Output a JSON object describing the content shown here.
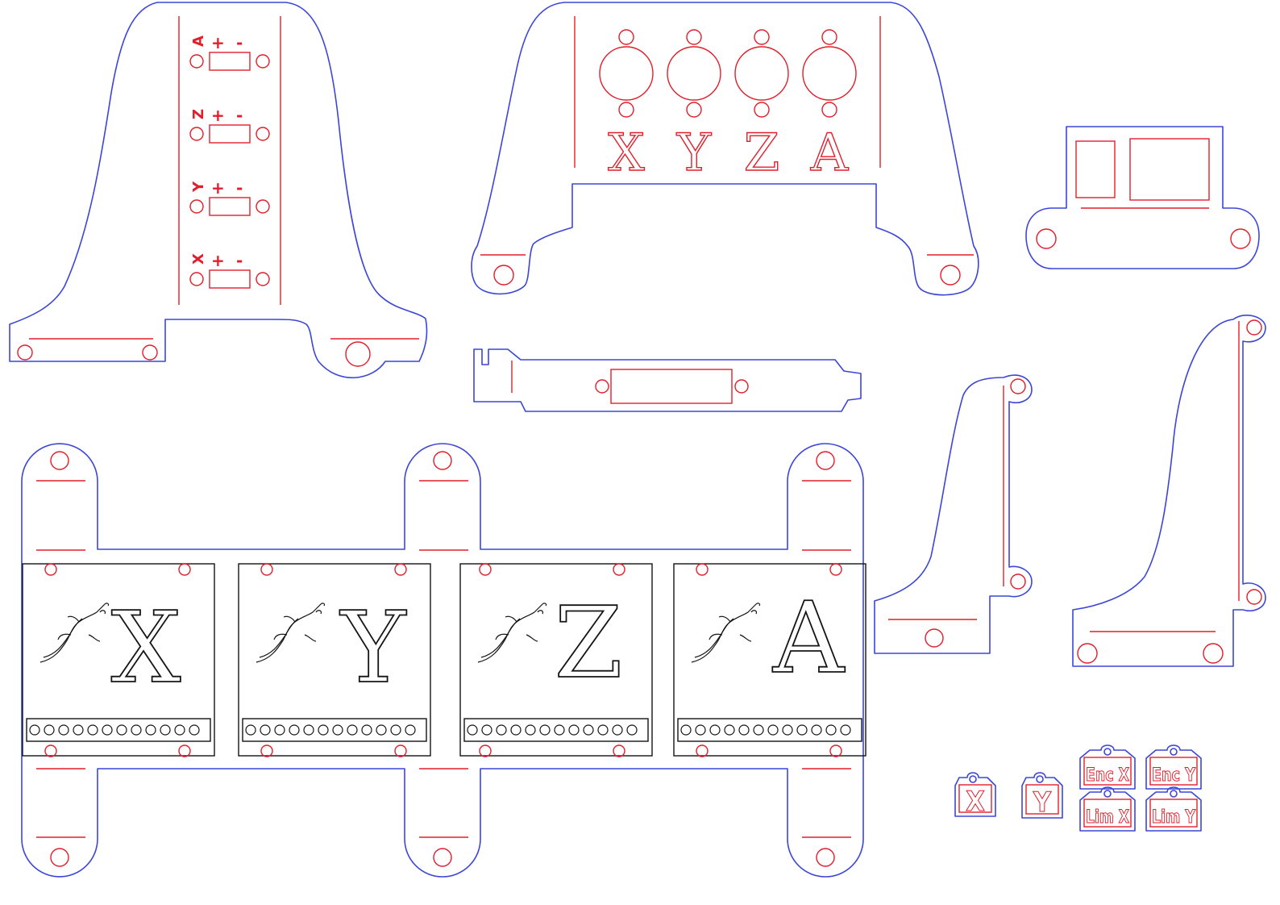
{
  "colors": {
    "cut_line": "#3b46d8",
    "engrave_line": "#e11e2a",
    "board_outline": "#141414"
  },
  "motor_panel": {
    "axes": [
      {
        "axis": "A",
        "plus": "+",
        "minus": "-"
      },
      {
        "axis": "Z",
        "plus": "+",
        "minus": "-"
      },
      {
        "axis": "Y",
        "plus": "+",
        "minus": "-"
      },
      {
        "axis": "X",
        "plus": "+",
        "minus": "-"
      }
    ]
  },
  "connector_panel": {
    "labels": [
      "X",
      "Y",
      "Z",
      "A"
    ]
  },
  "driver_boards": [
    {
      "axis": "X",
      "icon": "gecko-icon"
    },
    {
      "axis": "Y",
      "icon": "gecko-icon"
    },
    {
      "axis": "Z",
      "icon": "gecko-icon"
    },
    {
      "axis": "A",
      "icon": "gecko-icon"
    }
  ],
  "tags": {
    "single": [
      "X",
      "Y"
    ],
    "double": [
      "Enc X",
      "Enc Y",
      "Lim X",
      "Lim Y"
    ]
  }
}
